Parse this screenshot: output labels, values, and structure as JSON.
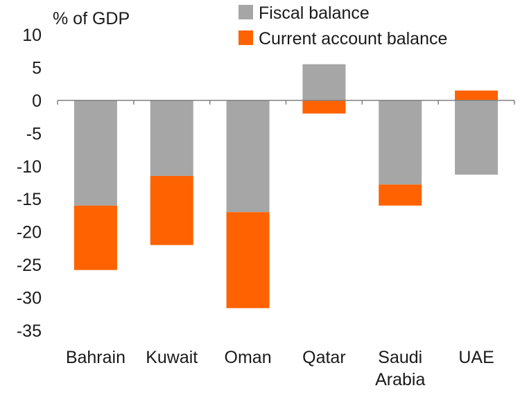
{
  "chart_data": {
    "type": "bar",
    "stacked": true,
    "title": "",
    "ylabel": "% of GDP",
    "xlabel": "",
    "ylim": [
      -35,
      10
    ],
    "yticks": [
      10,
      5,
      0,
      -5,
      -10,
      -15,
      -20,
      -25,
      -30,
      -35
    ],
    "grid": false,
    "legend_position": "top-right",
    "categories": [
      "Bahrain",
      "Kuwait",
      "Oman",
      "Qatar",
      "Saudi Arabia",
      "UAE"
    ],
    "category_lines": [
      [
        "Bahrain"
      ],
      [
        "Kuwait"
      ],
      [
        "Oman"
      ],
      [
        "Qatar"
      ],
      [
        "Saudi",
        "Arabia"
      ],
      [
        "UAE"
      ]
    ],
    "series": [
      {
        "name": "Fiscal balance",
        "color": "#a6a6a6",
        "values": [
          -16,
          -11.5,
          -17,
          5.5,
          -12.8,
          -11.3
        ]
      },
      {
        "name": "Current account balance",
        "color": "#ff6200",
        "values": [
          -9.8,
          -10.5,
          -14.6,
          -2,
          -3.2,
          1.5
        ]
      }
    ]
  }
}
